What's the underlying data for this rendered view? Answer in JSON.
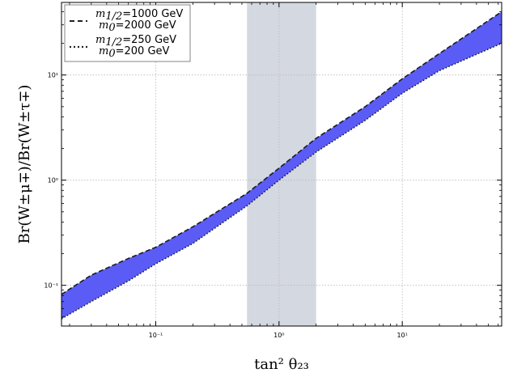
{
  "chart_data": {
    "type": "area",
    "xlabel": "tan² θ₂₃",
    "ylabel": "Br(W±μ∓)/Br(W±τ∓)",
    "xscale": "log",
    "yscale": "log",
    "xlim": [
      0.0172,
      64
    ],
    "ylim": [
      0.041,
      49
    ],
    "grid": true,
    "x_ticks": [
      {
        "value": 0.1,
        "label": "10⁻¹"
      },
      {
        "value": 1,
        "label": "10⁰"
      },
      {
        "value": 10,
        "label": "10¹"
      }
    ],
    "y_ticks": [
      {
        "value": 0.1,
        "label": "10⁻¹"
      },
      {
        "value": 1,
        "label": "10⁰"
      },
      {
        "value": 10,
        "label": "10¹"
      }
    ],
    "shaded_band": {
      "x_from": 0.55,
      "x_to": 2.0,
      "color": "#d4d8e0"
    },
    "band_fill_color": "#5a5cf5",
    "series": [
      {
        "name": "m1/2=1000 GeV, m0=2000 GeV",
        "linestyle": "dashed",
        "x": [
          0.0172,
          0.03,
          0.06,
          0.1,
          0.2,
          0.55,
          1.0,
          2.0,
          5.0,
          10.0,
          20.0,
          64.0
        ],
        "y": [
          0.082,
          0.125,
          0.18,
          0.23,
          0.36,
          0.75,
          1.3,
          2.5,
          5.0,
          9.2,
          16.0,
          40.0
        ]
      },
      {
        "name": "m1/2=250 GeV, m0=200 GeV",
        "linestyle": "dotted",
        "x": [
          0.0172,
          0.03,
          0.06,
          0.1,
          0.2,
          0.55,
          1.0,
          2.0,
          5.0,
          10.0,
          20.0,
          64.0
        ],
        "y": [
          0.048,
          0.07,
          0.11,
          0.16,
          0.25,
          0.57,
          1.0,
          1.85,
          3.7,
          6.7,
          11.0,
          20.0
        ]
      }
    ],
    "legend": {
      "position": "top-left",
      "entries": [
        {
          "style": "dashed",
          "line1_sym": "m",
          "line1_sub": "1/2",
          "line1_val": "=1000 GeV",
          "line2_sym": "m",
          "line2_sub": "0",
          "line2_val": "=2000 GeV"
        },
        {
          "style": "dotted",
          "line1_sym": "m",
          "line1_sub": "1/2",
          "line1_val": "=250 GeV",
          "line2_sym": "m",
          "line2_sub": "0",
          "line2_val": "=200 GeV"
        }
      ]
    }
  }
}
